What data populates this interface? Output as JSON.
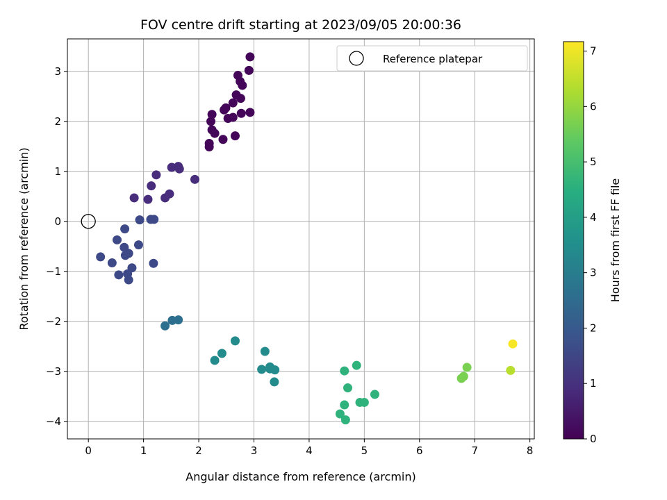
{
  "chart_data": {
    "type": "scatter",
    "title": "FOV centre drift starting at 2023/09/05 20:00:36",
    "xlabel": "Angular distance from reference (arcmin)",
    "ylabel": "Rotation from reference (arcmin)",
    "xlim": [
      -0.38,
      8.08
    ],
    "ylim": [
      -4.35,
      3.65
    ],
    "x_ticks": [
      0,
      1,
      2,
      3,
      4,
      5,
      6,
      7,
      8
    ],
    "y_ticks": [
      -4,
      -3,
      -2,
      -1,
      0,
      1,
      2,
      3
    ],
    "grid": true,
    "legend": {
      "position": "top-right",
      "entries": [
        "Reference platepar"
      ]
    },
    "reference_point": {
      "x": 0,
      "y": 0
    },
    "colorbar": {
      "label": "Hours from first FF file",
      "range": [
        0,
        7.17
      ],
      "ticks": [
        0,
        1,
        2,
        3,
        4,
        5,
        6,
        7
      ],
      "colormap": "viridis"
    },
    "series": [
      {
        "points": [
          {
            "x": 2.93,
            "y": 3.29,
            "h": 0.1
          },
          {
            "x": 2.91,
            "y": 3.02,
            "h": 0.1
          },
          {
            "x": 2.71,
            "y": 2.92,
            "h": 0.1
          },
          {
            "x": 2.75,
            "y": 2.8,
            "h": 0.1
          },
          {
            "x": 2.79,
            "y": 2.72,
            "h": 0.1
          },
          {
            "x": 2.68,
            "y": 2.53,
            "h": 0.1
          },
          {
            "x": 2.76,
            "y": 2.46,
            "h": 0.1
          },
          {
            "x": 2.62,
            "y": 2.37,
            "h": 0.1
          },
          {
            "x": 2.49,
            "y": 2.27,
            "h": 0.1
          },
          {
            "x": 2.46,
            "y": 2.23,
            "h": 0.1
          },
          {
            "x": 2.93,
            "y": 2.18,
            "h": 0.1
          },
          {
            "x": 2.77,
            "y": 2.16,
            "h": 0.1
          },
          {
            "x": 2.24,
            "y": 2.14,
            "h": 0.1
          },
          {
            "x": 2.62,
            "y": 2.08,
            "h": 0.1
          },
          {
            "x": 2.53,
            "y": 2.06,
            "h": 0.1
          },
          {
            "x": 2.22,
            "y": 2.0,
            "h": 0.1
          },
          {
            "x": 2.24,
            "y": 1.83,
            "h": 0.1
          },
          {
            "x": 2.29,
            "y": 1.76,
            "h": 0.1
          },
          {
            "x": 2.66,
            "y": 1.71,
            "h": 0.1
          },
          {
            "x": 2.44,
            "y": 1.64,
            "h": 0.1
          },
          {
            "x": 2.19,
            "y": 1.56,
            "h": 0.1
          },
          {
            "x": 2.19,
            "y": 1.49,
            "h": 0.1
          },
          {
            "x": 1.63,
            "y": 1.1,
            "h": 0.9
          },
          {
            "x": 1.51,
            "y": 1.08,
            "h": 0.9
          },
          {
            "x": 1.65,
            "y": 1.05,
            "h": 0.9
          },
          {
            "x": 1.23,
            "y": 0.93,
            "h": 0.9
          },
          {
            "x": 1.93,
            "y": 0.84,
            "h": 0.9
          },
          {
            "x": 1.14,
            "y": 0.71,
            "h": 0.9
          },
          {
            "x": 1.47,
            "y": 0.55,
            "h": 0.9
          },
          {
            "x": 0.83,
            "y": 0.47,
            "h": 0.9
          },
          {
            "x": 1.39,
            "y": 0.47,
            "h": 0.9
          },
          {
            "x": 1.08,
            "y": 0.44,
            "h": 0.9
          },
          {
            "x": 1.13,
            "y": 0.04,
            "h": 1.6
          },
          {
            "x": 1.19,
            "y": 0.04,
            "h": 1.6
          },
          {
            "x": 0.93,
            "y": 0.03,
            "h": 1.6
          },
          {
            "x": 0.66,
            "y": -0.15,
            "h": 1.6
          },
          {
            "x": 0.52,
            "y": -0.37,
            "h": 1.6
          },
          {
            "x": 0.91,
            "y": -0.47,
            "h": 1.6
          },
          {
            "x": 0.65,
            "y": -0.52,
            "h": 1.6
          },
          {
            "x": 0.73,
            "y": -0.64,
            "h": 1.6
          },
          {
            "x": 0.67,
            "y": -0.68,
            "h": 1.6
          },
          {
            "x": 0.22,
            "y": -0.71,
            "h": 1.6
          },
          {
            "x": 0.43,
            "y": -0.83,
            "h": 1.6
          },
          {
            "x": 1.18,
            "y": -0.84,
            "h": 1.6
          },
          {
            "x": 0.79,
            "y": -0.93,
            "h": 1.6
          },
          {
            "x": 0.71,
            "y": -1.05,
            "h": 1.6
          },
          {
            "x": 0.55,
            "y": -1.07,
            "h": 1.6
          },
          {
            "x": 0.73,
            "y": -1.17,
            "h": 1.6
          },
          {
            "x": 1.63,
            "y": -1.97,
            "h": 2.6
          },
          {
            "x": 1.52,
            "y": -1.98,
            "h": 2.6
          },
          {
            "x": 1.39,
            "y": -2.09,
            "h": 2.6
          },
          {
            "x": 2.66,
            "y": -2.39,
            "h": 3.4
          },
          {
            "x": 3.2,
            "y": -2.6,
            "h": 3.4
          },
          {
            "x": 2.42,
            "y": -2.64,
            "h": 3.4
          },
          {
            "x": 2.29,
            "y": -2.78,
            "h": 3.4
          },
          {
            "x": 3.29,
            "y": -2.91,
            "h": 3.4
          },
          {
            "x": 3.14,
            "y": -2.96,
            "h": 3.4
          },
          {
            "x": 3.29,
            "y": -2.95,
            "h": 3.4
          },
          {
            "x": 3.38,
            "y": -2.97,
            "h": 3.4
          },
          {
            "x": 3.37,
            "y": -3.21,
            "h": 3.4
          },
          {
            "x": 4.86,
            "y": -2.88,
            "h": 4.6
          },
          {
            "x": 4.64,
            "y": -2.99,
            "h": 4.6
          },
          {
            "x": 4.7,
            "y": -3.33,
            "h": 4.6
          },
          {
            "x": 5.19,
            "y": -3.46,
            "h": 4.6
          },
          {
            "x": 4.92,
            "y": -3.62,
            "h": 4.6
          },
          {
            "x": 5.0,
            "y": -3.62,
            "h": 4.6
          },
          {
            "x": 4.64,
            "y": -3.67,
            "h": 4.6
          },
          {
            "x": 4.56,
            "y": -3.85,
            "h": 4.6
          },
          {
            "x": 4.66,
            "y": -3.97,
            "h": 4.6
          },
          {
            "x": 6.86,
            "y": -2.92,
            "h": 5.7
          },
          {
            "x": 6.8,
            "y": -3.1,
            "h": 5.7
          },
          {
            "x": 6.76,
            "y": -3.14,
            "h": 5.7
          },
          {
            "x": 7.69,
            "y": -2.45,
            "h": 7.1
          },
          {
            "x": 7.65,
            "y": -2.98,
            "h": 6.4
          }
        ]
      }
    ]
  }
}
